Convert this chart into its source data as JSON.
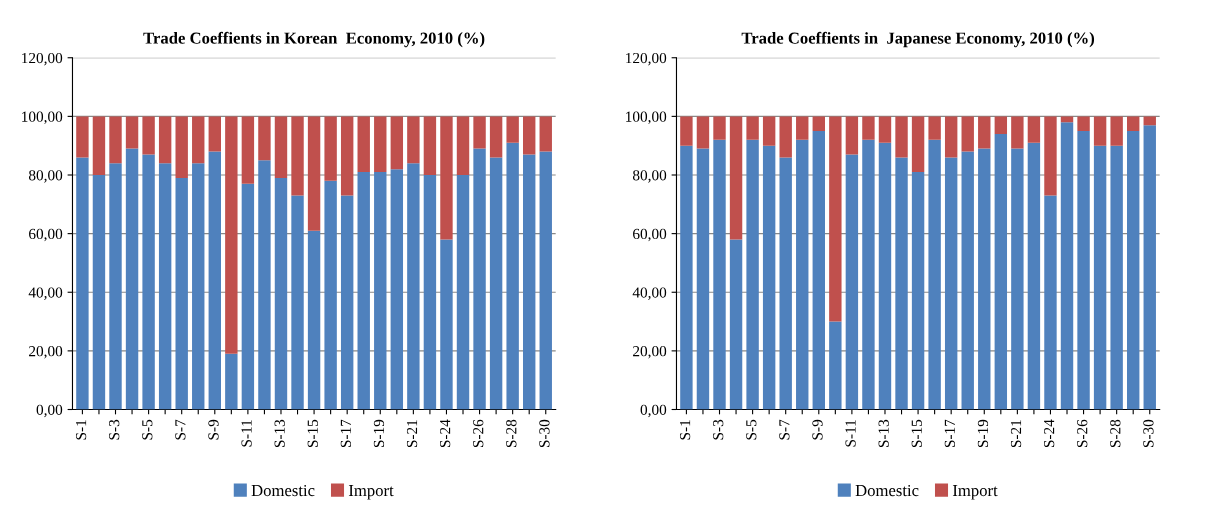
{
  "chart_data": [
    {
      "type": "bar",
      "title": "Trade Coeffients in Korean  Economy, 2010 (%)",
      "stacked": true,
      "grid": "y",
      "legend": "bottom",
      "categories": [
        "S-1",
        null,
        "S-3",
        null,
        "S-5",
        null,
        "S-7",
        null,
        "S-9",
        null,
        "S-11",
        null,
        "S-13",
        null,
        "S-15",
        null,
        "S-17",
        null,
        "S-19",
        null,
        "S-21",
        null,
        "S-24",
        null,
        "S-26",
        null,
        "S-28",
        null,
        "S-30"
      ],
      "ylim": [
        0,
        120
      ],
      "yticks": [
        {
          "value": 0,
          "label": "0,00"
        },
        {
          "value": 20,
          "label": "20,00"
        },
        {
          "value": 40,
          "label": "40,00"
        },
        {
          "value": 60,
          "label": "60,00"
        },
        {
          "value": 80,
          "label": "80,00"
        },
        {
          "value": 100,
          "label": "100,00"
        },
        {
          "value": 120,
          "label": "120,00"
        }
      ],
      "series": [
        {
          "name": "Domestic",
          "color": "#4f81bd",
          "values": [
            86,
            80,
            84,
            89,
            87,
            84,
            79,
            84,
            88,
            19,
            77,
            85,
            79,
            73,
            61,
            78,
            73,
            81,
            81,
            82,
            84,
            80,
            58,
            80,
            89,
            86,
            91,
            87,
            88
          ]
        },
        {
          "name": "Import",
          "color": "#c0504d",
          "values": [
            14,
            20,
            16,
            11,
            13,
            16,
            21,
            16,
            12,
            81,
            23,
            15,
            21,
            27,
            39,
            22,
            27,
            19,
            19,
            18,
            16,
            20,
            42,
            20,
            11,
            14,
            9,
            13,
            12
          ]
        }
      ]
    },
    {
      "type": "bar",
      "title": "Trade Coeffients in  Japanese Economy, 2010 (%)",
      "stacked": true,
      "grid": "y",
      "legend": "bottom",
      "categories": [
        "S-1",
        null,
        "S-3",
        null,
        "S-5",
        null,
        "S-7",
        null,
        "S-9",
        null,
        "S-11",
        null,
        "S-13",
        null,
        "S-15",
        null,
        "S-17",
        null,
        "S-19",
        null,
        "S-21",
        null,
        "S-24",
        null,
        "S-26",
        null,
        "S-28",
        null,
        "S-30"
      ],
      "ylim": [
        0,
        120
      ],
      "yticks": [
        {
          "value": 0,
          "label": "0,00"
        },
        {
          "value": 20,
          "label": "20,00"
        },
        {
          "value": 40,
          "label": "40,00"
        },
        {
          "value": 60,
          "label": "60,00"
        },
        {
          "value": 80,
          "label": "80,00"
        },
        {
          "value": 100,
          "label": "100,00"
        },
        {
          "value": 120,
          "label": "120,00"
        }
      ],
      "series": [
        {
          "name": "Domestic",
          "color": "#4f81bd",
          "values": [
            90,
            89,
            92,
            58,
            92,
            90,
            86,
            92,
            95,
            30,
            87,
            92,
            91,
            86,
            81,
            92,
            86,
            88,
            89,
            94,
            89,
            91,
            73,
            98,
            95,
            90,
            90,
            95,
            97
          ]
        },
        {
          "name": "Import",
          "color": "#c0504d",
          "values": [
            10,
            11,
            8,
            42,
            8,
            10,
            14,
            8,
            5,
            70,
            13,
            8,
            9,
            14,
            19,
            8,
            14,
            12,
            11,
            6,
            11,
            9,
            27,
            2,
            5,
            10,
            10,
            5,
            3
          ]
        }
      ]
    }
  ]
}
